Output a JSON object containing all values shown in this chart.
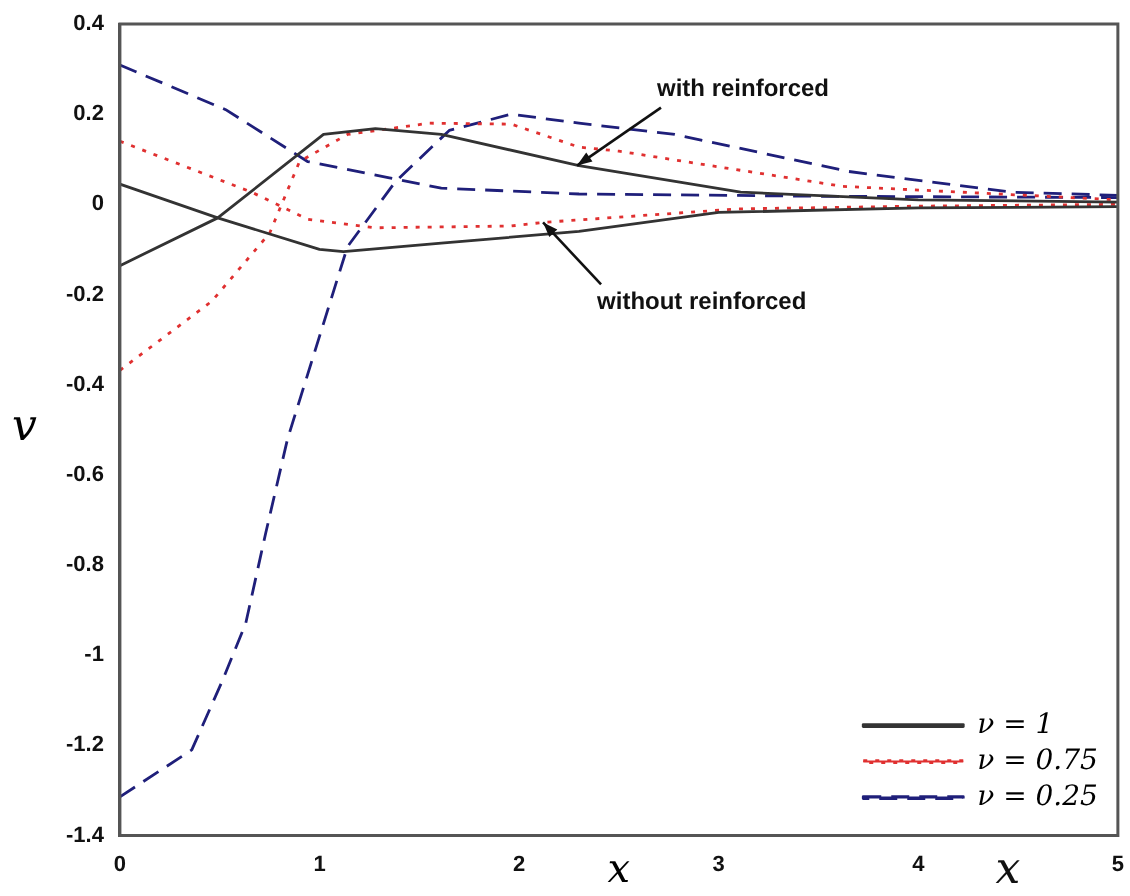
{
  "chart_data": {
    "type": "line",
    "xlabel": "x",
    "ylabel": "v",
    "xlim": [
      0,
      5
    ],
    "ylim": [
      -1.4,
      0.4
    ],
    "xticks": [
      0,
      1,
      2,
      3,
      4,
      5
    ],
    "yticks": [
      -1.4,
      -1.2,
      -1,
      -0.8,
      -0.6,
      -0.4,
      -0.2,
      0,
      0.2,
      0.4
    ],
    "grid": false,
    "legend": "bottom right",
    "marker": "none",
    "annotations": [
      {
        "text": "with reinforced",
        "x": 2.29,
        "y": 0.086
      },
      {
        "text": "without reinforced",
        "x": 2.12,
        "y": -0.04
      },
      "x"
    ],
    "series": [
      {
        "name": "ν = 1",
        "color": "#333333",
        "line_style": "solid",
        "x": [
          0,
          0.49,
          1.02,
          1.28,
          1.61,
          2.3,
          3.11,
          4,
          5
        ],
        "values": [
          -0.136,
          -0.03,
          0.155,
          0.168,
          0.155,
          0.086,
          0.027,
          0.01,
          0.005
        ]
      },
      {
        "color": "#333333",
        "line_style": "solid",
        "x": [
          0,
          0.49,
          1,
          1.12,
          1.61,
          2.3,
          3,
          4,
          5
        ],
        "values": [
          0.045,
          -0.03,
          -0.1,
          -0.105,
          -0.086,
          -0.06,
          -0.018,
          -0.008,
          -0.005
        ]
      },
      {
        "name": "ν = 0.75",
        "color": "#e03030",
        "line_style": "dotted",
        "x": [
          0,
          0.46,
          0.75,
          0.9,
          1.14,
          1.55,
          1.96,
          2.3,
          2.5,
          3.62,
          5
        ],
        "values": [
          -0.368,
          -0.215,
          -0.064,
          0.095,
          0.155,
          0.18,
          0.178,
          0.127,
          0.118,
          0.04,
          0.01
        ]
      },
      {
        "color": "#e03030",
        "line_style": "dotted",
        "x": [
          0,
          0.66,
          0.94,
          1.28,
          1.96,
          2.12,
          3.1,
          4,
          5
        ],
        "values": [
          0.14,
          0.027,
          -0.033,
          -0.052,
          -0.048,
          -0.04,
          -0.01,
          -0.004,
          0
        ]
      },
      {
        "name": "ν = 0.25",
        "color": "#1f1f7a",
        "line_style": "dashed",
        "x": [
          0,
          0.36,
          0.51,
          0.63,
          0.73,
          0.84,
          1.14,
          1.38,
          1.65,
          1.96,
          2.3,
          2.78,
          3.65,
          4.47,
          5
        ],
        "values": [
          -1.314,
          -1.21,
          -1.06,
          -0.93,
          -0.73,
          -0.52,
          -0.094,
          0.05,
          0.164,
          0.2,
          0.18,
          0.155,
          0.073,
          0.027,
          0.02
        ]
      },
      {
        "color": "#1f1f7a",
        "line_style": "dashed",
        "x": [
          0,
          0.53,
          0.94,
          1.35,
          1.61,
          2.3,
          3.5,
          5
        ],
        "values": [
          0.309,
          0.21,
          0.095,
          0.059,
          0.036,
          0.023,
          0.018,
          0.015
        ]
      }
    ]
  }
}
